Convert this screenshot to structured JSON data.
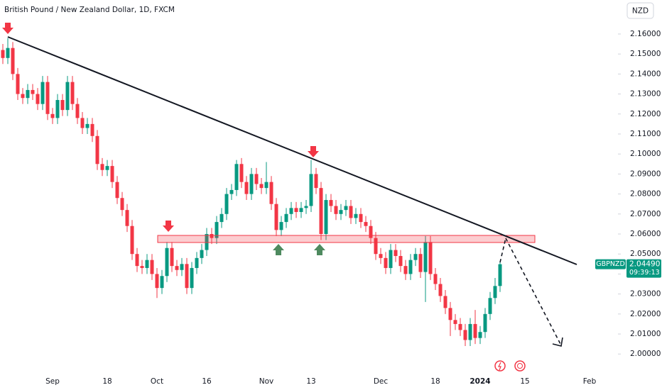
{
  "chart_data": {
    "type": "candlestick",
    "title": "British Pound / New Zealand Dollar, 1D, FXCM",
    "currency": "NZD",
    "symbol": "GBPNZD",
    "countdown": "09:39:13",
    "last_price": {
      "value": 2.0449,
      "label": "2.04490"
    },
    "up_color": "#089981",
    "down_color": "#f23645",
    "categories": [
      null,
      null,
      null,
      null,
      null,
      null,
      null,
      null,
      null,
      null,
      "Sep",
      null,
      null,
      null,
      null,
      null,
      null,
      null,
      null,
      null,
      null,
      "18",
      null,
      null,
      null,
      null,
      null,
      null,
      null,
      null,
      null,
      "Oct",
      null,
      null,
      null,
      null,
      null,
      null,
      null,
      null,
      null,
      "16",
      null,
      null,
      null,
      null,
      null,
      null,
      null,
      null,
      null,
      null,
      null,
      "Nov",
      null,
      null,
      null,
      null,
      null,
      null,
      null,
      null,
      "13",
      null,
      null,
      null,
      null,
      null,
      null,
      null,
      null,
      null,
      null,
      null,
      null,
      null,
      "Dec",
      null,
      null,
      null,
      null,
      null,
      null,
      null,
      null,
      null,
      null,
      "18",
      null,
      null,
      null,
      null,
      null,
      null,
      null,
      null,
      "2024",
      null,
      null,
      null,
      null,
      null,
      null,
      null,
      null,
      "15",
      null,
      null,
      null,
      null,
      null,
      null,
      null,
      null,
      null,
      null,
      null,
      null,
      "Feb",
      null,
      null,
      null,
      null
    ],
    "open": [
      2.152,
      2.148,
      2.153,
      2.14,
      2.13,
      2.128,
      2.132,
      2.13,
      2.125,
      2.136,
      2.12,
      2.118,
      2.127,
      2.122,
      2.136,
      2.125,
      2.118,
      2.113,
      2.115,
      2.109,
      2.095,
      2.092,
      2.094,
      2.086,
      2.078,
      2.072,
      2.064,
      2.05,
      2.044,
      2.043,
      2.047,
      2.04,
      2.033,
      2.039,
      2.053,
      2.044,
      2.042,
      2.045,
      2.033,
      2.043,
      2.048,
      2.052,
      2.06,
      2.058,
      2.066,
      2.07,
      2.08,
      2.082,
      2.095,
      2.086,
      2.08,
      2.09,
      2.085,
      2.083,
      2.086,
      2.075,
      2.062,
      2.066,
      2.07,
      2.073,
      2.071,
      2.073,
      2.074,
      2.09,
      2.083,
      2.06,
      2.077,
      2.074,
      2.07,
      2.072,
      2.074,
      2.068,
      2.07,
      2.066,
      2.064,
      2.058,
      2.05,
      2.048,
      2.043,
      2.052,
      2.049,
      2.044,
      2.04,
      2.047,
      2.05,
      2.041,
      2.056,
      2.04,
      2.035,
      2.029,
      2.023,
      2.017,
      2.015,
      2.012,
      2.007,
      2.015,
      2.008,
      2.011,
      2.02,
      2.028,
      2.034,
      null,
      null,
      null,
      null,
      null,
      null,
      null,
      null,
      null,
      null,
      null,
      null,
      null,
      null,
      null,
      null,
      null,
      null,
      null,
      null,
      null,
      null
    ],
    "high": [
      2.155,
      2.158,
      2.156,
      2.143,
      2.133,
      2.135,
      2.135,
      2.133,
      2.139,
      2.139,
      2.123,
      2.13,
      2.13,
      2.139,
      2.139,
      2.128,
      2.121,
      2.118,
      2.118,
      2.112,
      2.098,
      2.097,
      2.097,
      2.089,
      2.081,
      2.075,
      2.067,
      2.053,
      2.047,
      2.05,
      2.05,
      2.043,
      2.042,
      2.056,
      2.056,
      2.047,
      2.048,
      2.048,
      2.046,
      2.051,
      2.055,
      2.063,
      2.063,
      2.069,
      2.073,
      2.083,
      2.085,
      2.097,
      2.098,
      2.089,
      2.093,
      2.093,
      2.088,
      2.096,
      2.089,
      2.078,
      2.069,
      2.073,
      2.076,
      2.076,
      2.076,
      2.077,
      2.097,
      2.093,
      2.086,
      2.08,
      2.08,
      2.077,
      2.075,
      2.077,
      2.077,
      2.073,
      2.073,
      2.069,
      2.067,
      2.061,
      2.053,
      2.051,
      2.055,
      2.055,
      2.052,
      2.047,
      2.05,
      2.053,
      2.053,
      2.059,
      2.059,
      2.043,
      2.038,
      2.032,
      2.026,
      2.02,
      2.018,
      2.015,
      2.018,
      2.022,
      2.014,
      2.023,
      2.031,
      2.038,
      2.046,
      null,
      null,
      null,
      null,
      null,
      null,
      null,
      null,
      null,
      null,
      null,
      null,
      null,
      null,
      null,
      null,
      null,
      null,
      null,
      null,
      null,
      null
    ],
    "low": [
      2.145,
      2.145,
      2.137,
      2.127,
      2.125,
      2.125,
      2.127,
      2.122,
      2.122,
      2.117,
      2.115,
      2.115,
      2.119,
      2.119,
      2.122,
      2.115,
      2.11,
      2.11,
      2.106,
      2.092,
      2.089,
      2.089,
      2.083,
      2.075,
      2.069,
      2.061,
      2.047,
      2.041,
      2.04,
      2.04,
      2.037,
      2.028,
      2.03,
      2.036,
      2.041,
      2.039,
      2.039,
      2.03,
      2.03,
      2.04,
      2.045,
      2.049,
      2.055,
      2.055,
      2.063,
      2.067,
      2.077,
      2.079,
      2.083,
      2.077,
      2.077,
      2.082,
      2.08,
      2.08,
      2.072,
      2.059,
      2.059,
      2.063,
      2.067,
      2.068,
      2.068,
      2.07,
      2.071,
      2.08,
      2.057,
      2.057,
      2.071,
      2.067,
      2.067,
      2.069,
      2.065,
      2.065,
      2.063,
      2.061,
      2.055,
      2.047,
      2.045,
      2.04,
      2.04,
      2.046,
      2.041,
      2.037,
      2.037,
      2.044,
      2.038,
      2.026,
      2.037,
      2.032,
      2.026,
      2.02,
      2.009,
      2.012,
      2.009,
      2.004,
      2.004,
      2.005,
      2.005,
      2.008,
      2.017,
      2.025,
      2.031,
      null,
      null,
      null,
      null,
      null,
      null,
      null,
      null,
      null,
      null,
      null,
      null,
      null,
      null,
      null,
      null,
      null,
      null,
      null,
      null,
      null,
      null
    ],
    "close": [
      2.148,
      2.153,
      2.14,
      2.13,
      2.128,
      2.132,
      2.13,
      2.125,
      2.136,
      2.12,
      2.118,
      2.127,
      2.122,
      2.136,
      2.125,
      2.118,
      2.113,
      2.115,
      2.109,
      2.095,
      2.092,
      2.094,
      2.086,
      2.078,
      2.072,
      2.064,
      2.05,
      2.044,
      2.043,
      2.047,
      2.04,
      2.033,
      2.039,
      2.053,
      2.044,
      2.042,
      2.045,
      2.033,
      2.043,
      2.048,
      2.052,
      2.06,
      2.058,
      2.066,
      2.07,
      2.08,
      2.082,
      2.095,
      2.086,
      2.08,
      2.09,
      2.085,
      2.083,
      2.086,
      2.075,
      2.062,
      2.066,
      2.07,
      2.073,
      2.071,
      2.073,
      2.074,
      2.09,
      2.083,
      2.06,
      2.077,
      2.074,
      2.07,
      2.072,
      2.074,
      2.068,
      2.07,
      2.066,
      2.064,
      2.058,
      2.05,
      2.048,
      2.043,
      2.052,
      2.049,
      2.044,
      2.04,
      2.047,
      2.05,
      2.041,
      2.056,
      2.04,
      2.035,
      2.029,
      2.023,
      2.017,
      2.015,
      2.012,
      2.007,
      2.015,
      2.008,
      2.011,
      2.02,
      2.028,
      2.034,
      2.0449,
      null,
      null,
      null,
      null,
      null,
      null,
      null,
      null,
      null,
      null,
      null,
      null,
      null,
      null,
      null,
      null,
      null,
      null,
      null,
      null,
      null,
      null
    ],
    "ylim": [
      1.9898,
      2.177
    ],
    "yticks": [
      {
        "value": 2.0,
        "label": "2.00000"
      },
      {
        "value": 2.01,
        "label": "2.01000"
      },
      {
        "value": 2.02,
        "label": "2.02000"
      },
      {
        "value": 2.03,
        "label": "2.03000"
      },
      {
        "value": 2.04,
        "label": "2.04000"
      },
      {
        "value": 2.05,
        "label": "2.05000"
      },
      {
        "value": 2.06,
        "label": "2.06000"
      },
      {
        "value": 2.07,
        "label": "2.07000"
      },
      {
        "value": 2.08,
        "label": "2.08000"
      },
      {
        "value": 2.09,
        "label": "2.09000"
      },
      {
        "value": 2.1,
        "label": "2.10000"
      },
      {
        "value": 2.11,
        "label": "2.11000"
      },
      {
        "value": 2.12,
        "label": "2.12000"
      },
      {
        "value": 2.13,
        "label": "2.13000"
      },
      {
        "value": 2.14,
        "label": "2.14000"
      },
      {
        "value": 2.15,
        "label": "2.15000"
      },
      {
        "value": 2.16,
        "label": "2.16000"
      }
    ]
  }
}
